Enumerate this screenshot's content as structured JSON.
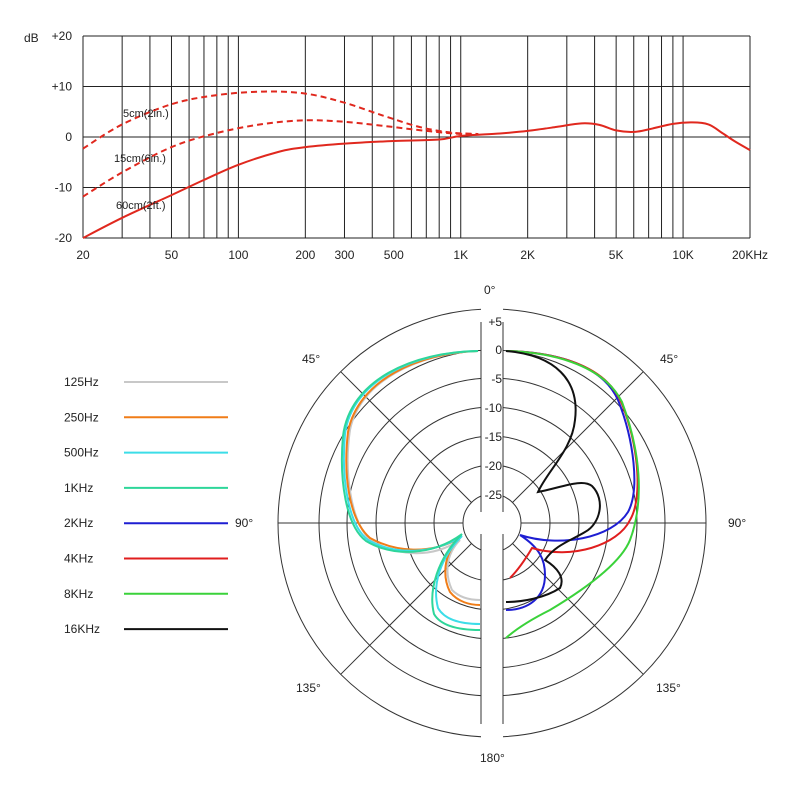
{
  "chart_data": [
    {
      "type": "line",
      "x_scale": "log",
      "xlim": [
        20,
        20000
      ],
      "ylim": [
        -20,
        20
      ],
      "ylabel": "dB",
      "y_ticks": [
        20,
        10,
        0,
        -10,
        -20
      ],
      "y_tick_labels": [
        "+20",
        "+10",
        "0",
        "-10",
        "-20"
      ],
      "x_ticks": [
        20,
        50,
        100,
        200,
        300,
        500,
        1000,
        2000,
        5000,
        10000,
        20000
      ],
      "x_tick_labels": [
        "20",
        "50",
        "100",
        "200",
        "300",
        "500",
        "1K",
        "2K",
        "5K",
        "10K",
        "20KHz"
      ],
      "grid": true,
      "series": [
        {
          "name": "5cm(2in.)",
          "color": "#e0281e",
          "style": "dashed",
          "points": [
            [
              20,
              -2.3
            ],
            [
              30,
              2.5
            ],
            [
              50,
              6.5
            ],
            [
              80,
              8.3
            ],
            [
              130,
              9.0
            ],
            [
              200,
              8.6
            ],
            [
              300,
              6.8
            ],
            [
              450,
              4.2
            ],
            [
              650,
              2.0
            ],
            [
              900,
              0.9
            ],
            [
              1200,
              0.6
            ]
          ]
        },
        {
          "name": "15cm(6in.)",
          "color": "#e0281e",
          "style": "dashed",
          "points": [
            [
              20,
              -11.8
            ],
            [
              30,
              -7.0
            ],
            [
              50,
              -2.0
            ],
            [
              80,
              0.8
            ],
            [
              130,
              2.6
            ],
            [
              200,
              3.3
            ],
            [
              300,
              3.0
            ],
            [
              450,
              2.2
            ],
            [
              700,
              1.2
            ],
            [
              1000,
              0.6
            ],
            [
              1200,
              0.5
            ]
          ]
        },
        {
          "name": "60cm(2ft.)",
          "color": "#e0281e",
          "style": "solid",
          "points": [
            [
              20,
              -20.0
            ],
            [
              30,
              -16.0
            ],
            [
              50,
              -11.5
            ],
            [
              70,
              -8.5
            ],
            [
              100,
              -5.5
            ],
            [
              150,
              -3.0
            ],
            [
              200,
              -2.0
            ],
            [
              300,
              -1.3
            ],
            [
              500,
              -0.8
            ],
            [
              800,
              -0.5
            ],
            [
              1000,
              0.2
            ],
            [
              1500,
              0.7
            ],
            [
              2000,
              1.2
            ],
            [
              2700,
              2.0
            ],
            [
              3500,
              2.7
            ],
            [
              4200,
              2.4
            ],
            [
              5000,
              1.3
            ],
            [
              6000,
              1.0
            ],
            [
              7000,
              1.5
            ],
            [
              9000,
              2.6
            ],
            [
              11000,
              2.9
            ],
            [
              13000,
              2.5
            ],
            [
              15000,
              0.8
            ],
            [
              17000,
              -0.8
            ],
            [
              20000,
              -2.6
            ]
          ]
        }
      ]
    },
    {
      "type": "polar",
      "r_ticks": [
        5,
        0,
        -5,
        -10,
        -15,
        -20,
        -25
      ],
      "r_tick_labels": [
        "+5",
        "0",
        "-5",
        "-10",
        "-15",
        "-20",
        "-25"
      ],
      "angle_labels": [
        "0°",
        "45°",
        "45°",
        "90°",
        "90°",
        "135°",
        "135°",
        "180°"
      ],
      "legend_position": "left",
      "series": [
        {
          "name": "125Hz",
          "color": "#c8c8c8",
          "side": "left"
        },
        {
          "name": "250Hz",
          "color": "#f07d18",
          "side": "left"
        },
        {
          "name": "500Hz",
          "color": "#3cdde8",
          "side": "left"
        },
        {
          "name": "1KHz",
          "color": "#2ed69a",
          "side": "left"
        },
        {
          "name": "2KHz",
          "color": "#1e1ed2",
          "side": "right"
        },
        {
          "name": "4KHz",
          "color": "#e01e1e",
          "side": "right"
        },
        {
          "name": "8KHz",
          "color": "#3ad23a",
          "side": "right"
        },
        {
          "name": "16KHz",
          "color": "#111111",
          "side": "right"
        }
      ]
    }
  ],
  "curve_labels": [
    "5cm(2in.)",
    "15cm(6in.)",
    "60cm(2ft.)"
  ],
  "legend": [
    {
      "label": "125Hz",
      "color": "#c8c8c8"
    },
    {
      "label": "250Hz",
      "color": "#f07d18"
    },
    {
      "label": "500Hz",
      "color": "#3cdde8"
    },
    {
      "label": "1KHz",
      "color": "#2ed69a"
    },
    {
      "label": "2KHz",
      "color": "#1e1ed2"
    },
    {
      "label": "4KHz",
      "color": "#e01e1e"
    },
    {
      "label": "8KHz",
      "color": "#3ad23a"
    },
    {
      "label": "16KHz",
      "color": "#111111"
    }
  ]
}
